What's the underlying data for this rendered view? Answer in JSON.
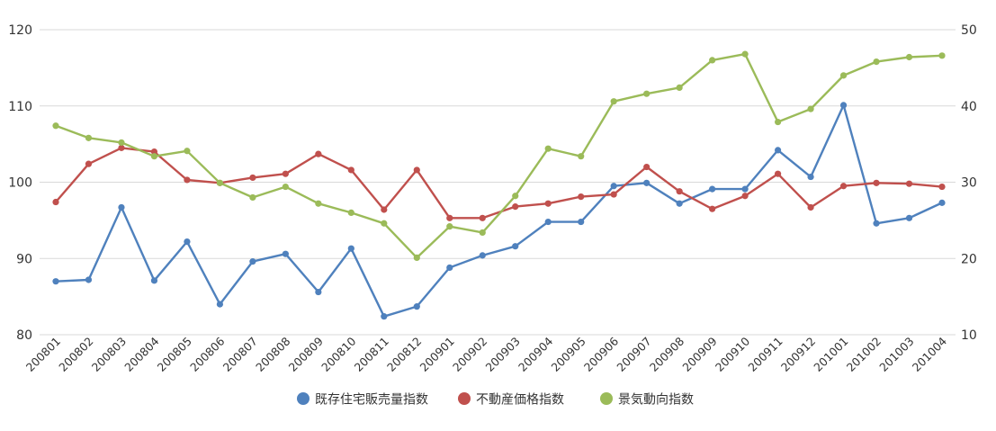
{
  "chart_data": {
    "type": "line",
    "title": "",
    "xlabel": "",
    "ylabel": "",
    "categories": [
      "200801",
      "200802",
      "200803",
      "200804",
      "200805",
      "200806",
      "200807",
      "200808",
      "200809",
      "200810",
      "200811",
      "200812",
      "200901",
      "200902",
      "200903",
      "200904",
      "200905",
      "200906",
      "200907",
      "200908",
      "200909",
      "200910",
      "200911",
      "200912",
      "201001",
      "201002",
      "201003",
      "201004"
    ],
    "ylim": [
      80,
      120
    ],
    "yticks": [
      80,
      90,
      100,
      110,
      120
    ],
    "y2lim": [
      10,
      50
    ],
    "y2ticks": [
      10,
      20,
      30,
      40,
      50
    ],
    "grid": true,
    "legend_position": "bottom",
    "series": [
      {
        "name": "既存住宅販売量指数",
        "axis": "left",
        "color": "#4f81bd",
        "values": [
          87.0,
          87.2,
          96.7,
          87.1,
          92.2,
          84.0,
          89.6,
          90.6,
          85.6,
          91.3,
          82.4,
          83.7,
          88.8,
          90.4,
          91.6,
          94.8,
          94.8,
          99.5,
          99.9,
          97.2,
          99.1,
          99.1,
          104.2,
          100.7,
          110.1,
          94.6,
          95.3,
          97.3
        ]
      },
      {
        "name": "不動産価格指数",
        "axis": "left",
        "color": "#c0504d",
        "values": [
          97.4,
          102.4,
          104.5,
          104.0,
          100.3,
          99.9,
          100.6,
          101.1,
          103.7,
          101.6,
          96.4,
          101.6,
          95.3,
          95.3,
          96.8,
          97.2,
          98.1,
          98.4,
          102.0,
          98.8,
          96.5,
          98.2,
          101.1,
          96.7,
          99.5,
          99.9,
          99.8,
          99.4
        ]
      },
      {
        "name": "景気動向指数",
        "axis": "right",
        "color": "#9bbb59",
        "values": [
          37.4,
          35.8,
          35.2,
          33.4,
          34.1,
          29.9,
          28.0,
          29.4,
          27.2,
          26.0,
          24.6,
          20.1,
          24.2,
          23.4,
          28.2,
          34.4,
          33.4,
          40.6,
          41.6,
          42.4,
          46.0,
          46.8,
          37.9,
          39.6,
          44.0,
          45.8,
          46.4,
          46.6
        ]
      }
    ]
  }
}
